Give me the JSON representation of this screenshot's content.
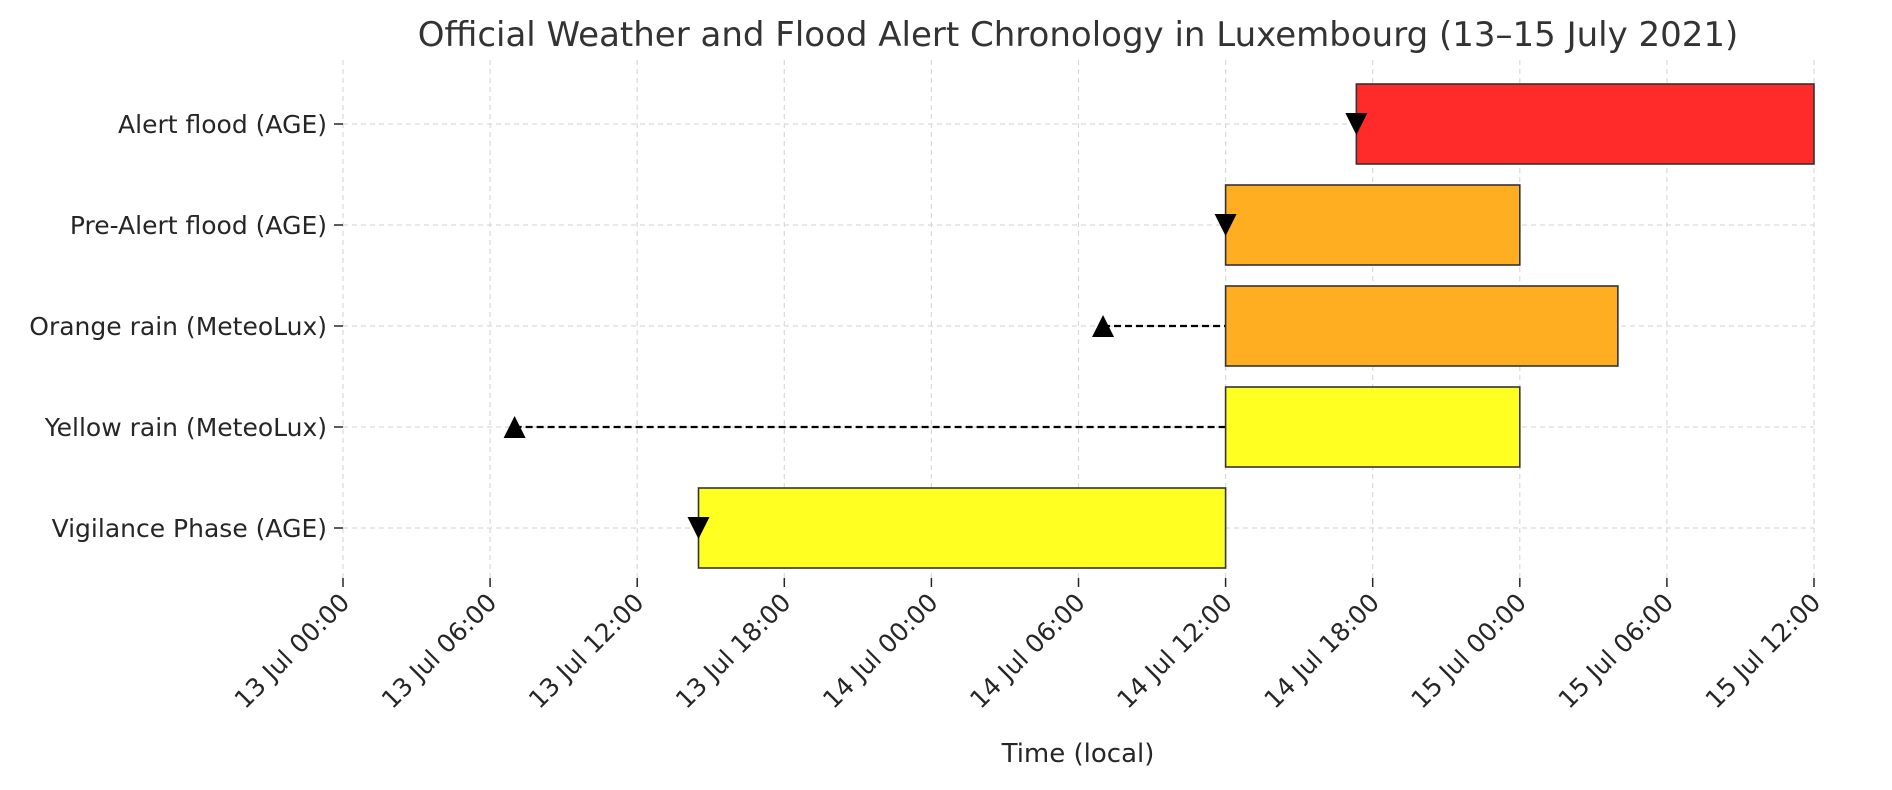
{
  "chart_data": {
    "type": "gantt",
    "title": "Official Weather and Flood Alert Chronology in Luxembourg (13–15 July 2021)",
    "xlabel": "Time (local)",
    "ylabel": "",
    "xlim": [
      "2021-07-13 00:00",
      "2021-07-15 12:00"
    ],
    "x_ticks": [
      "13 Jul 00:00",
      "13 Jul 06:00",
      "13 Jul 12:00",
      "13 Jul 18:00",
      "14 Jul 00:00",
      "14 Jul 06:00",
      "14 Jul 12:00",
      "14 Jul 18:00",
      "15 Jul 00:00",
      "15 Jul 06:00",
      "15 Jul 12:00"
    ],
    "grid": true,
    "categories": [
      "Vigilance Phase (AGE)",
      "Yellow rain (MeteoLux)",
      "Orange rain (MeteoLux)",
      "Pre-Alert flood (AGE)",
      "Alert flood (AGE)"
    ],
    "bars": [
      {
        "category": "Vigilance Phase (AGE)",
        "start": "2021-07-13 14:30",
        "end": "2021-07-14 12:00",
        "color": "#FFFF22",
        "marker": {
          "time": "2021-07-13 14:30",
          "symbol": "triangle-down"
        }
      },
      {
        "category": "Yellow rain (MeteoLux)",
        "start": "2021-07-14 12:00",
        "end": "2021-07-15 00:00",
        "color": "#FFFF22",
        "marker": {
          "time": "2021-07-13 07:00",
          "symbol": "triangle-up",
          "dashed_link": true
        }
      },
      {
        "category": "Orange rain (MeteoLux)",
        "start": "2021-07-14 12:00",
        "end": "2021-07-15 04:00",
        "color": "#FFAE22",
        "marker": {
          "time": "2021-07-14 07:00",
          "symbol": "triangle-up",
          "dashed_link": true
        }
      },
      {
        "category": "Pre-Alert flood (AGE)",
        "start": "2021-07-14 12:00",
        "end": "2021-07-15 00:00",
        "color": "#FFAE22",
        "marker": {
          "time": "2021-07-14 12:00",
          "symbol": "triangle-down"
        }
      },
      {
        "category": "Alert flood (AGE)",
        "start": "2021-07-14 17:20",
        "end": "2021-07-15 12:00",
        "color": "#FF2A2A",
        "marker": {
          "time": "2021-07-14 17:20",
          "symbol": "triangle-down"
        }
      }
    ]
  }
}
